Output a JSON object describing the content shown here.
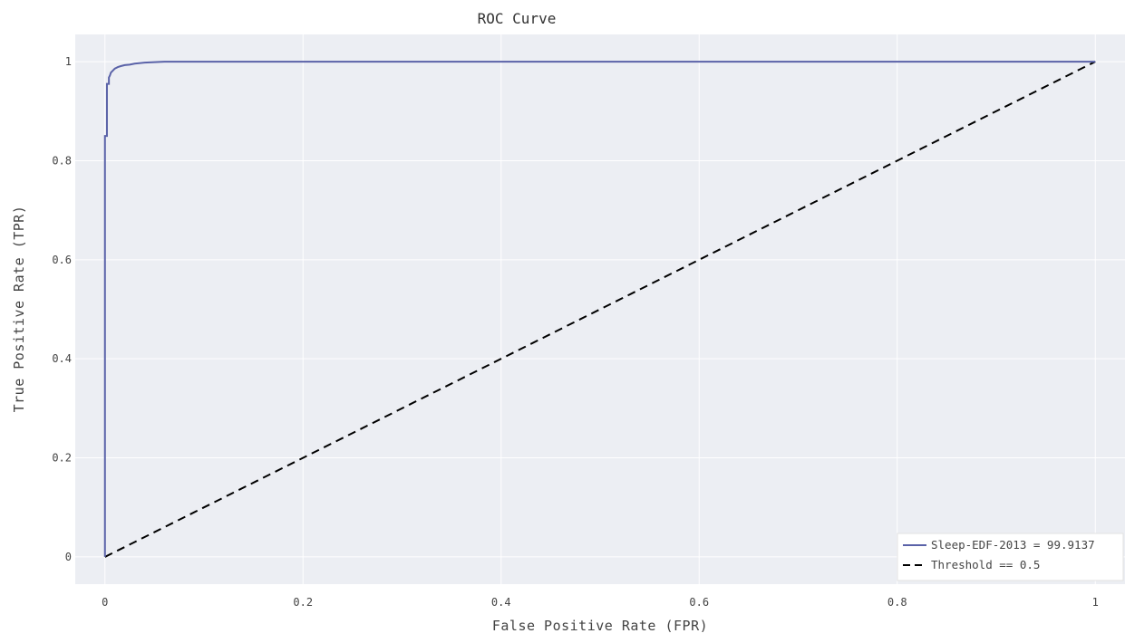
{
  "chart_data": {
    "type": "line",
    "title": "ROC Curve",
    "xlabel": "False Positive Rate (FPR)",
    "ylabel": "True Positive Rate (TPR)",
    "xlim": [
      -0.03,
      1.03
    ],
    "ylim": [
      -0.055,
      1.055
    ],
    "x_ticks": [
      0,
      0.2,
      0.4,
      0.6,
      0.8,
      1
    ],
    "x_tick_labels": [
      "0",
      "0.2",
      "0.4",
      "0.6",
      "0.8",
      "1"
    ],
    "y_ticks": [
      0,
      0.2,
      0.4,
      0.6,
      0.8,
      1
    ],
    "y_tick_labels": [
      "0",
      "0.2",
      "0.4",
      "0.6",
      "0.8",
      "1"
    ],
    "grid": true,
    "legend_position": "bottom-right",
    "series": [
      {
        "name": "Sleep-EDF-2013 = 99.9137",
        "color": "#5a62a8",
        "dash": "solid",
        "x": [
          0,
          0,
          0.002,
          0.002,
          0.004,
          0.004,
          0.005,
          0.006,
          0.008,
          0.01,
          0.013,
          0.016,
          0.02,
          0.025,
          0.03,
          0.04,
          0.05,
          0.06,
          1
        ],
        "y": [
          0,
          0.85,
          0.85,
          0.955,
          0.955,
          0.968,
          0.972,
          0.978,
          0.982,
          0.986,
          0.989,
          0.991,
          0.993,
          0.994,
          0.996,
          0.998,
          0.999,
          1.0,
          1.0
        ]
      },
      {
        "name": "Threshold == 0.5",
        "color": "#000000",
        "dash": "dashed",
        "x": [
          0,
          1
        ],
        "y": [
          0,
          1
        ]
      }
    ]
  }
}
